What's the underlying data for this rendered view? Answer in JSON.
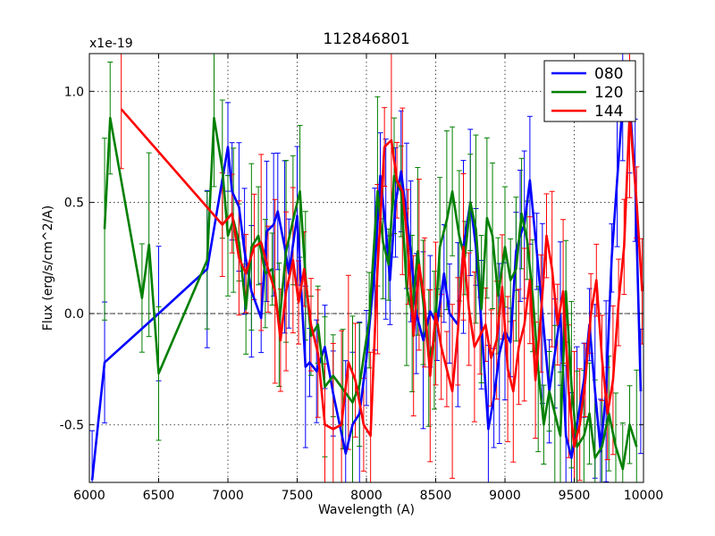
{
  "chart_data": {
    "type": "line",
    "title": "112846801",
    "xlabel": "Wavelength (A)",
    "ylabel": "Flux (erg/s/cm^2/A)",
    "offset_label": "x1e-19",
    "xlim": [
      6000,
      10000
    ],
    "ylim": [
      -0.76,
      1.17
    ],
    "xticks": [
      6000,
      6500,
      7000,
      7500,
      8000,
      8500,
      9000,
      9500,
      10000
    ],
    "xtick_labels": [
      "6000",
      "6500",
      "7000",
      "7500",
      "8000",
      "8500",
      "9000",
      "9500",
      "10000"
    ],
    "yticks": [
      -0.5,
      0.0,
      0.5,
      1.0
    ],
    "ytick_labels": [
      "-0.5",
      "0.0",
      "0.5",
      "1.0"
    ],
    "grid": true,
    "legend_position": "top-right",
    "series": [
      {
        "name": "080",
        "color": "#0000ff",
        "x": [
          6020,
          6110,
          6500,
          6850,
          7000,
          7030,
          7080,
          7120,
          7170,
          7240,
          7280,
          7330,
          7360,
          7410,
          7440,
          7500,
          7560,
          7590,
          7640,
          7700,
          7760,
          7850,
          7900,
          7950,
          8000,
          8060,
          8100,
          8140,
          8170,
          8210,
          8250,
          8290,
          8320,
          8360,
          8410,
          8460,
          8510,
          8560,
          8600,
          8660,
          8700,
          8750,
          8790,
          8830,
          8880,
          8920,
          8960,
          9000,
          9040,
          9080,
          9110,
          9140,
          9180,
          9230,
          9270,
          9320,
          9360,
          9400,
          9440,
          9480,
          9520,
          9570,
          9610,
          9650,
          9690,
          9730,
          9770,
          9810,
          9850,
          9900,
          9940,
          9980
        ],
        "y": [
          -0.75,
          -0.22,
          0.0,
          0.2,
          0.75,
          0.55,
          0.48,
          0.28,
          0.1,
          -0.02,
          0.37,
          0.4,
          0.46,
          0.3,
          0.18,
          0.44,
          -0.24,
          -0.22,
          -0.26,
          -0.15,
          -0.36,
          -0.63,
          -0.5,
          -0.45,
          -0.2,
          0.2,
          0.62,
          0.38,
          0.15,
          0.5,
          0.64,
          0.44,
          0.28,
          0.0,
          -0.12,
          0.01,
          -0.05,
          0.18,
          0.0,
          -0.05,
          0.3,
          0.5,
          0.3,
          -0.05,
          -0.52,
          -0.38,
          -0.18,
          -0.08,
          -0.13,
          0.28,
          0.35,
          0.4,
          0.6,
          0.28,
          0.0,
          -0.35,
          -0.18,
          0.0,
          -0.55,
          -0.65,
          -0.5,
          -0.3,
          -0.05,
          -0.35,
          -0.62,
          -0.35,
          0.25,
          0.6,
          0.95,
          0.95,
          0.6,
          -0.35
        ]
      },
      {
        "name": "120",
        "color": "#008000",
        "x": [
          6110,
          6150,
          6380,
          6430,
          6500,
          6850,
          6900,
          6960,
          7000,
          7040,
          7080,
          7130,
          7170,
          7220,
          7270,
          7320,
          7370,
          7420,
          7470,
          7520,
          7560,
          7600,
          7650,
          7700,
          7760,
          7830,
          7900,
          7950,
          8020,
          8080,
          8120,
          8160,
          8200,
          8250,
          8290,
          8330,
          8370,
          8410,
          8450,
          8490,
          8530,
          8580,
          8620,
          8670,
          8710,
          8750,
          8790,
          8830,
          8870,
          8910,
          8950,
          9000,
          9040,
          9080,
          9120,
          9160,
          9200,
          9240,
          9280,
          9320,
          9360,
          9400,
          9440,
          9480,
          9520,
          9570,
          9610,
          9650,
          9700,
          9750,
          9800,
          9850,
          9900,
          9950
        ],
        "y": [
          0.38,
          0.88,
          0.07,
          0.31,
          -0.27,
          0.24,
          0.88,
          0.65,
          0.35,
          0.42,
          0.32,
          0.02,
          0.3,
          0.35,
          0.18,
          0.2,
          -0.05,
          0.28,
          0.42,
          0.55,
          0.17,
          -0.1,
          -0.05,
          -0.33,
          -0.28,
          -0.34,
          -0.4,
          -0.32,
          -0.03,
          0.55,
          0.32,
          0.22,
          0.62,
          0.55,
          0.12,
          0.0,
          0.28,
          0.05,
          -0.2,
          -0.12,
          0.3,
          0.42,
          0.55,
          0.35,
          0.25,
          0.5,
          0.38,
          0.02,
          0.43,
          0.35,
          0.08,
          0.3,
          0.15,
          0.2,
          0.45,
          0.33,
          0.08,
          -0.25,
          -0.5,
          -0.35,
          -0.45,
          -0.55,
          0.1,
          -0.32,
          -0.6,
          -0.55,
          -0.45,
          -0.65,
          -0.6,
          -0.45,
          -0.6,
          -0.7,
          -0.5,
          -0.6
        ]
      },
      {
        "name": "144",
        "color": "#ff0000",
        "x": [
          6230,
          6960,
          7030,
          7080,
          7130,
          7190,
          7240,
          7290,
          7340,
          7380,
          7420,
          7470,
          7510,
          7550,
          7600,
          7650,
          7700,
          7760,
          7820,
          7870,
          7920,
          7980,
          8030,
          8080,
          8130,
          8180,
          8220,
          8260,
          8300,
          8340,
          8380,
          8420,
          8460,
          8500,
          8540,
          8580,
          8620,
          8660,
          8700,
          8740,
          8780,
          8820,
          8860,
          8900,
          8940,
          8980,
          9020,
          9060,
          9100,
          9140,
          9180,
          9220,
          9260,
          9300,
          9340,
          9380,
          9420,
          9460,
          9500,
          9540,
          9580,
          9620,
          9660,
          9700,
          9740,
          9780,
          9820,
          9860,
          9900,
          9950,
          9990
        ],
        "y": [
          0.92,
          0.4,
          0.45,
          0.25,
          0.18,
          0.3,
          0.32,
          0.2,
          0.1,
          -0.12,
          0.1,
          0.24,
          0.05,
          0.2,
          -0.05,
          -0.18,
          -0.5,
          -0.52,
          -0.5,
          -0.22,
          -0.3,
          -0.5,
          -0.55,
          0.2,
          0.75,
          0.78,
          0.6,
          0.55,
          0.3,
          -0.1,
          0.22,
          0.05,
          -0.28,
          0.0,
          -0.15,
          -0.25,
          -0.35,
          -0.08,
          0.3,
          0.02,
          -0.15,
          -0.1,
          -0.05,
          -0.2,
          -0.12,
          0.12,
          -0.25,
          -0.35,
          -0.15,
          -0.05,
          0.15,
          -0.3,
          0.0,
          0.35,
          0.2,
          -0.05,
          0.1,
          -0.35,
          -0.6,
          -0.5,
          -0.3,
          0.0,
          0.15,
          -0.2,
          -0.45,
          -0.3,
          0.05,
          0.3,
          0.9,
          0.5,
          0.1
        ]
      }
    ]
  }
}
